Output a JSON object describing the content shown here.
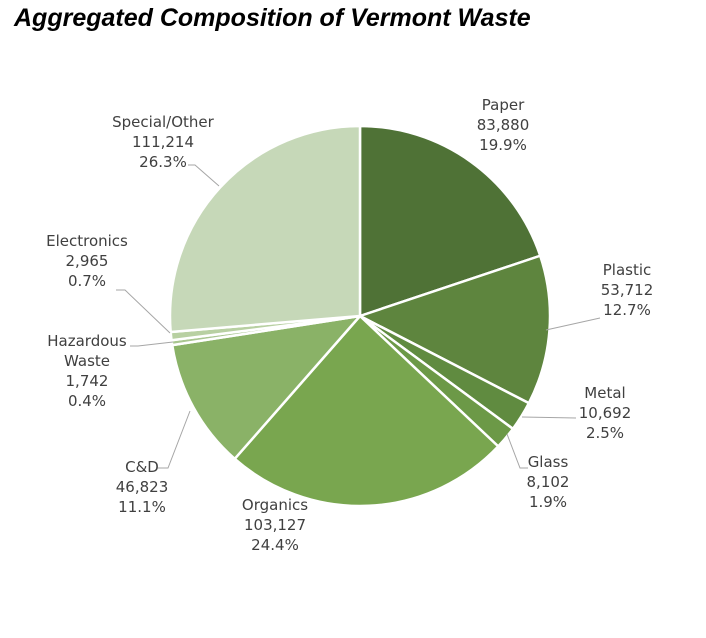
{
  "title": "Aggregated Composition of Vermont Waste",
  "chart_data": {
    "type": "pie",
    "title": "Aggregated Composition of Vermont Waste",
    "start_angle_deg": 0,
    "direction": "clockwise",
    "slices": [
      {
        "label": [
          "Paper"
        ],
        "value": 83880,
        "value_text": "83,880",
        "percent_text": "19.9%",
        "color": "#4f7236"
      },
      {
        "label": [
          "Plastic"
        ],
        "value": 53712,
        "value_text": "53,712",
        "percent_text": "12.7%",
        "color": "#5e853e"
      },
      {
        "label": [
          "Metal"
        ],
        "value": 10692,
        "value_text": "10,692",
        "percent_text": "2.5%",
        "color": "#608b40"
      },
      {
        "label": [
          "Glass"
        ],
        "value": 8102,
        "value_text": "8,102",
        "percent_text": "1.9%",
        "color": "#6c9947"
      },
      {
        "label": [
          "Organics"
        ],
        "value": 103127,
        "value_text": "103,127",
        "percent_text": "24.4%",
        "color": "#79a64f"
      },
      {
        "label": [
          "C&D"
        ],
        "value": 46823,
        "value_text": "46,823",
        "percent_text": "11.1%",
        "color": "#8ab267"
      },
      {
        "label": [
          "Hazardous",
          "Waste"
        ],
        "value": 1742,
        "value_text": "1,742",
        "percent_text": "0.4%",
        "color": "#a9c690"
      },
      {
        "label": [
          "Electronics"
        ],
        "value": 2965,
        "value_text": "2,965",
        "percent_text": "0.7%",
        "color": "#b8d0a2"
      },
      {
        "label": [
          "Special/Other"
        ],
        "value": 111214,
        "value_text": "111,214",
        "percent_text": "26.3%",
        "color": "#c6d8b8"
      }
    ]
  }
}
